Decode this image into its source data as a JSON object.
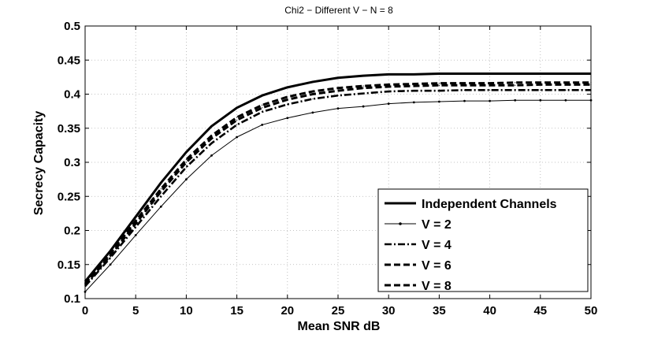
{
  "chart_data": {
    "type": "line",
    "title": "Chi2 − Different V − N = 8",
    "xlabel": "Mean SNR dB",
    "ylabel": "Secrecy Capacity",
    "xlim": [
      0,
      50
    ],
    "ylim": [
      0.1,
      0.5
    ],
    "xticks": [
      0,
      5,
      10,
      15,
      20,
      25,
      30,
      35,
      40,
      45,
      50
    ],
    "yticks": [
      0.1,
      0.15,
      0.2,
      0.25,
      0.3,
      0.35,
      0.4,
      0.45,
      0.5
    ],
    "grid": true,
    "legend_position": "bottom-right",
    "x": [
      0,
      2.5,
      5,
      7.5,
      10,
      12.5,
      15,
      17.5,
      20,
      22.5,
      25,
      27.5,
      30,
      32.5,
      35,
      37.5,
      40,
      42.5,
      45,
      47.5,
      50
    ],
    "series": [
      {
        "name": "Independent Channels",
        "style": "solid-thick",
        "values": [
          0.125,
          0.17,
          0.22,
          0.27,
          0.315,
          0.353,
          0.38,
          0.398,
          0.41,
          0.418,
          0.424,
          0.427,
          0.429,
          0.429,
          0.43,
          0.43,
          0.43,
          0.43,
          0.43,
          0.43,
          0.43
        ]
      },
      {
        "name": "V = 2",
        "style": "solid-thin-dot",
        "values": [
          0.11,
          0.15,
          0.193,
          0.235,
          0.275,
          0.31,
          0.337,
          0.355,
          0.365,
          0.373,
          0.379,
          0.382,
          0.386,
          0.388,
          0.389,
          0.39,
          0.39,
          0.391,
          0.391,
          0.391,
          0.391
        ]
      },
      {
        "name": "V = 4",
        "style": "dashdot",
        "values": [
          0.118,
          0.16,
          0.205,
          0.25,
          0.293,
          0.328,
          0.355,
          0.374,
          0.385,
          0.393,
          0.398,
          0.401,
          0.404,
          0.405,
          0.405,
          0.406,
          0.406,
          0.406,
          0.406,
          0.406,
          0.406
        ]
      },
      {
        "name": "V = 6",
        "style": "dashed",
        "values": [
          0.12,
          0.163,
          0.21,
          0.257,
          0.3,
          0.335,
          0.362,
          0.38,
          0.392,
          0.4,
          0.405,
          0.409,
          0.411,
          0.412,
          0.413,
          0.413,
          0.413,
          0.413,
          0.414,
          0.414,
          0.414
        ]
      },
      {
        "name": "V = 8",
        "style": "dashed",
        "values": [
          0.122,
          0.166,
          0.214,
          0.261,
          0.304,
          0.339,
          0.366,
          0.384,
          0.396,
          0.404,
          0.409,
          0.412,
          0.414,
          0.415,
          0.416,
          0.416,
          0.416,
          0.417,
          0.417,
          0.417,
          0.417
        ]
      }
    ]
  }
}
